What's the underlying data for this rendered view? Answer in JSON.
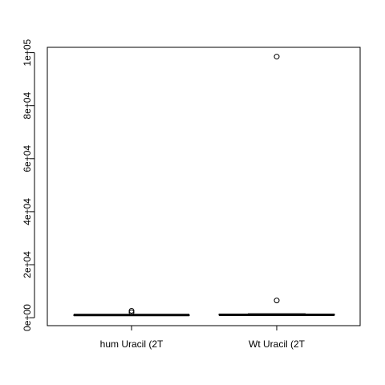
{
  "chart_data": {
    "type": "box",
    "title": "",
    "xlabel": "",
    "ylabel": "",
    "ylim": [
      -3000,
      102000
    ],
    "y_ticks": [
      0,
      20000,
      40000,
      60000,
      80000,
      100000
    ],
    "y_tick_labels": [
      "0e+00",
      "2e+04",
      "4e+04",
      "6e+04",
      "8e+04",
      "1e+05"
    ],
    "categories": [
      "hum Uracil (2T",
      "Wt Uracil (2T"
    ],
    "boxes": [
      {
        "name": "hum Uracil (2T",
        "min": 800,
        "q1": 900,
        "median": 1000,
        "q3": 1100,
        "max": 1200,
        "outliers": [
          2000,
          2600
        ]
      },
      {
        "name": "Wt Uracil (2T",
        "min": 900,
        "q1": 1000,
        "median": 1100,
        "q3": 1300,
        "max": 1500,
        "outliers": [
          6500,
          98500
        ]
      }
    ],
    "grid": false,
    "legend": "none"
  }
}
